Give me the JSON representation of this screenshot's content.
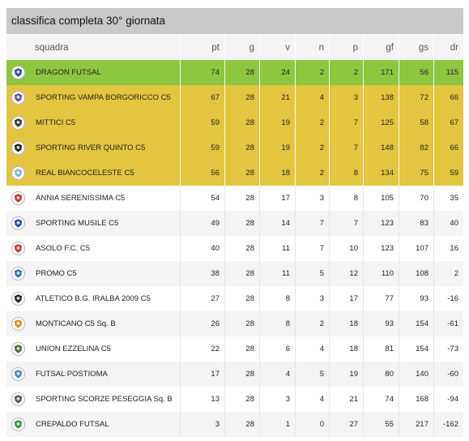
{
  "title": "classifica completa 30° giornata",
  "headers": {
    "team": "squadra",
    "pt": "pt",
    "g": "g",
    "v": "v",
    "n": "n",
    "p": "p",
    "gf": "gf",
    "gs": "gs",
    "dr": "dr"
  },
  "colors": {
    "title_bar": "#c9c9c9",
    "leader": "#8dc63f",
    "top_zone": "#e3c540",
    "alt_row": "#f4f4f4"
  },
  "rows": [
    {
      "team": "DRAGON FUTSAL",
      "pt": "74",
      "g": "28",
      "v": "24",
      "n": "2",
      "p": "2",
      "gf": "171",
      "gs": "56",
      "dr": "115",
      "zone": "lead",
      "logo": "dragon-futsal-logo-icon",
      "logo_color": "#2b4f8f"
    },
    {
      "team": "SPORTING VAMPA BORGORICCO C5",
      "pt": "67",
      "g": "28",
      "v": "21",
      "n": "4",
      "p": "3",
      "gf": "138",
      "gs": "72",
      "dr": "66",
      "zone": "top",
      "logo": "sporting-vampa-logo-icon",
      "logo_color": "#6a4a9b"
    },
    {
      "team": "MITTICI C5",
      "pt": "59",
      "g": "28",
      "v": "19",
      "n": "2",
      "p": "7",
      "gf": "125",
      "gs": "58",
      "dr": "67",
      "zone": "top",
      "logo": "mittici-logo-icon",
      "logo_color": "#333333"
    },
    {
      "team": "SPORTING RIVER QUINTO C5",
      "pt": "59",
      "g": "28",
      "v": "19",
      "n": "2",
      "p": "7",
      "gf": "148",
      "gs": "82",
      "dr": "66",
      "zone": "top",
      "logo": "sporting-river-logo-icon",
      "logo_color": "#1f1f1f"
    },
    {
      "team": "REAL BIANCOCELESTE C5",
      "pt": "56",
      "g": "28",
      "v": "18",
      "n": "2",
      "p": "8",
      "gf": "134",
      "gs": "75",
      "dr": "59",
      "zone": "top",
      "logo": "real-biancoceleste-logo-icon",
      "logo_color": "#7fb3d8"
    },
    {
      "team": "ANNIA SERENISSIMA C5",
      "pt": "54",
      "g": "28",
      "v": "17",
      "n": "3",
      "p": "8",
      "gf": "105",
      "gs": "70",
      "dr": "35",
      "zone": "",
      "logo": "annia-serenissima-logo-icon",
      "logo_color": "#c9302c"
    },
    {
      "team": "SPORTING MUSILE C5",
      "pt": "49",
      "g": "28",
      "v": "14",
      "n": "7",
      "p": "7",
      "gf": "123",
      "gs": "83",
      "dr": "40",
      "zone": "alt",
      "logo": "sporting-musile-logo-icon",
      "logo_color": "#1f4f9f"
    },
    {
      "team": "ASOLO F.C. C5",
      "pt": "40",
      "g": "28",
      "v": "11",
      "n": "7",
      "p": "10",
      "gf": "123",
      "gs": "107",
      "dr": "16",
      "zone": "",
      "logo": "asolo-logo-icon",
      "logo_color": "#c0392b"
    },
    {
      "team": "PROMO C5",
      "pt": "38",
      "g": "28",
      "v": "11",
      "n": "5",
      "p": "12",
      "gf": "110",
      "gs": "108",
      "dr": "2",
      "zone": "alt",
      "logo": "promo-logo-icon",
      "logo_color": "#2e6fc4"
    },
    {
      "team": "ATLETICO B.G. IRALBA 2009 C5",
      "pt": "27",
      "g": "28",
      "v": "8",
      "n": "3",
      "p": "17",
      "gf": "77",
      "gs": "93",
      "dr": "-16",
      "zone": "",
      "logo": "atletico-iralba-logo-icon",
      "logo_color": "#222222"
    },
    {
      "team": "MONTICANO C5 Sq. B",
      "pt": "26",
      "g": "28",
      "v": "8",
      "n": "2",
      "p": "18",
      "gf": "93",
      "gs": "154",
      "dr": "-61",
      "zone": "alt",
      "logo": "monticano-logo-icon",
      "logo_color": "#d98b1c"
    },
    {
      "team": "UNION EZZELINA C5",
      "pt": "22",
      "g": "28",
      "v": "6",
      "n": "4",
      "p": "18",
      "gf": "81",
      "gs": "154",
      "dr": "-73",
      "zone": "",
      "logo": "union-ezzelina-logo-icon",
      "logo_color": "#3a6b2a"
    },
    {
      "team": "FUTSAL POSTIOMA",
      "pt": "17",
      "g": "28",
      "v": "4",
      "n": "5",
      "p": "19",
      "gf": "80",
      "gs": "140",
      "dr": "-60",
      "zone": "alt",
      "logo": "futsal-postioma-logo-icon",
      "logo_color": "#4a86c5"
    },
    {
      "team": "SPORTING SCORZE PESEGGIA Sq. B",
      "pt": "13",
      "g": "28",
      "v": "3",
      "n": "4",
      "p": "21",
      "gf": "74",
      "gs": "168",
      "dr": "-94",
      "zone": "",
      "logo": "sporting-scorze-logo-icon",
      "logo_color": "#555555"
    },
    {
      "team": "CREPALDO FUTSAL",
      "pt": "3",
      "g": "28",
      "v": "1",
      "n": "0",
      "p": "27",
      "gf": "55",
      "gs": "217",
      "dr": "-162",
      "zone": "alt",
      "logo": "crepaldo-logo-icon",
      "logo_color": "#2f8f3f"
    }
  ]
}
